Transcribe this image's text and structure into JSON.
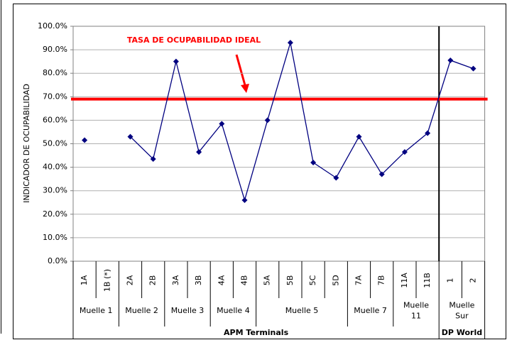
{
  "chart_data": {
    "type": "line",
    "y_label": "INDICADOR DE OCUPABILIDAD",
    "annotation": "TASA DE OCUPABILIDAD IDEAL",
    "reference_line": {
      "value": 69,
      "color": "#ff0000"
    },
    "ylim": [
      0,
      100
    ],
    "yticks": [
      {
        "value": 0,
        "label": "0.0%"
      },
      {
        "value": 10,
        "label": "10.0%"
      },
      {
        "value": 20,
        "label": "20.0%"
      },
      {
        "value": 30,
        "label": "30.0%"
      },
      {
        "value": 40,
        "label": "40.0%"
      },
      {
        "value": 50,
        "label": "50.0%"
      },
      {
        "value": 60,
        "label": "60.0%"
      },
      {
        "value": 70,
        "label": "70.0%"
      },
      {
        "value": 80,
        "label": "80.0%"
      },
      {
        "value": 90,
        "label": "90.0%"
      },
      {
        "value": 100,
        "label": "100.0%"
      }
    ],
    "grid": true,
    "color": "#000080",
    "terminals": [
      {
        "label": "APM Terminals",
        "groups": [
          {
            "label": [
              "Muelle 1"
            ],
            "categories": [
              "1A",
              "1B (*)"
            ]
          },
          {
            "label": [
              "Muelle 2"
            ],
            "categories": [
              "2A",
              "2B"
            ]
          },
          {
            "label": [
              "Muelle 3"
            ],
            "categories": [
              "3A",
              "3B"
            ]
          },
          {
            "label": [
              "Muelle 4"
            ],
            "categories": [
              "4A",
              "4B"
            ]
          },
          {
            "label": [
              "Muelle 5"
            ],
            "categories": [
              "5A",
              "5B",
              "5C",
              "5D"
            ]
          },
          {
            "label": [
              "Muelle 7"
            ],
            "categories": [
              "7A",
              "7B"
            ]
          },
          {
            "label": [
              "Muelle",
              "11"
            ],
            "categories": [
              "11A",
              "11B"
            ]
          }
        ]
      },
      {
        "label": "DP World",
        "groups": [
          {
            "label": [
              "Muelle",
              "Sur"
            ],
            "categories": [
              "1",
              "2"
            ]
          }
        ]
      }
    ],
    "values": [
      51.5,
      null,
      53,
      43.5,
      85,
      46.5,
      58.5,
      26,
      60,
      93,
      42,
      35.5,
      53,
      37,
      46.5,
      54.5,
      85.5,
      82
    ]
  }
}
